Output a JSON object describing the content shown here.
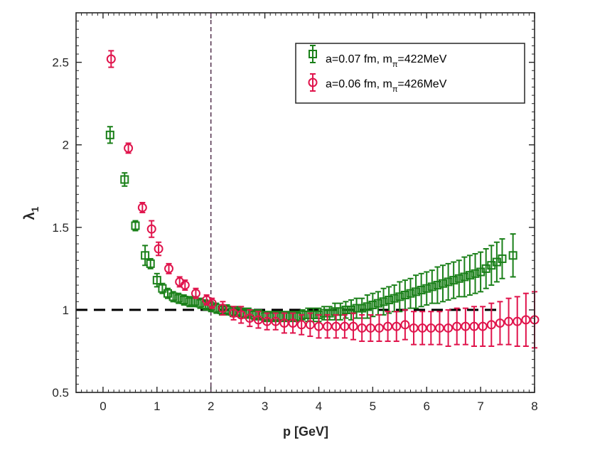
{
  "chart_data": {
    "type": "scatter",
    "xlabel": "p [GeV]",
    "ylabel": "λ",
    "ylabel_sub": "1",
    "xlim": [
      -0.5,
      8
    ],
    "ylim": [
      0.5,
      2.8
    ],
    "x_ticks": [
      0,
      1,
      2,
      3,
      4,
      5,
      6,
      7,
      8
    ],
    "x_tick_labels": [
      "0",
      "1",
      "2",
      "3",
      "4",
      "5",
      "6",
      "7",
      "8"
    ],
    "y_ticks": [
      0.5,
      1,
      1.5,
      2,
      2.5
    ],
    "y_tick_labels": [
      "0.5",
      "1",
      "1.5",
      "2",
      "2.5"
    ],
    "reference_lines": {
      "horizontal": {
        "y": 1,
        "style": "dashed",
        "color": "#000000",
        "x_end": 7.3
      },
      "vertical": {
        "x": 2,
        "style": "dashed",
        "color": "#5a3a55"
      }
    },
    "legend": {
      "position": "top-right",
      "entries": [
        {
          "prefix": "a=0.07 fm,  m",
          "sub": "π",
          "suffix": "=422MeV",
          "marker": "square",
          "color": "#1a8019"
        },
        {
          "prefix": "a=0.06 fm, m",
          "sub": "π",
          "suffix": "=426MeV",
          "marker": "circle",
          "color": "#e0144c"
        }
      ]
    },
    "series": [
      {
        "name": "a=0.07 fm, mπ=422MeV",
        "marker": "square",
        "color": "#1a8019",
        "x": [
          0.13,
          0.4,
          0.6,
          0.78,
          0.88,
          1.0,
          1.1,
          1.2,
          1.3,
          1.4,
          1.5,
          1.6,
          1.7,
          1.8,
          1.9,
          2.0,
          2.1,
          2.2,
          2.3,
          2.4,
          2.5,
          2.6,
          2.7,
          2.8,
          2.9,
          3.0,
          3.1,
          3.2,
          3.3,
          3.4,
          3.5,
          3.6,
          3.7,
          3.8,
          3.9,
          4.0,
          4.1,
          4.2,
          4.3,
          4.4,
          4.5,
          4.6,
          4.7,
          4.8,
          4.9,
          5.0,
          5.1,
          5.2,
          5.3,
          5.4,
          5.5,
          5.6,
          5.7,
          5.8,
          5.9,
          6.0,
          6.1,
          6.2,
          6.3,
          6.4,
          6.5,
          6.6,
          6.7,
          6.8,
          6.9,
          7.0,
          7.1,
          7.2,
          7.3,
          7.4,
          7.6
        ],
        "y": [
          2.06,
          1.79,
          1.51,
          1.33,
          1.28,
          1.18,
          1.13,
          1.1,
          1.08,
          1.07,
          1.06,
          1.05,
          1.05,
          1.04,
          1.03,
          1.02,
          1.01,
          1.0,
          1.0,
          0.99,
          0.99,
          0.98,
          0.98,
          0.97,
          0.97,
          0.96,
          0.96,
          0.96,
          0.96,
          0.96,
          0.96,
          0.96,
          0.97,
          0.97,
          0.97,
          0.97,
          0.98,
          0.98,
          0.99,
          0.99,
          1.0,
          1.0,
          1.01,
          1.01,
          1.02,
          1.03,
          1.04,
          1.05,
          1.06,
          1.07,
          1.08,
          1.09,
          1.1,
          1.11,
          1.12,
          1.13,
          1.14,
          1.15,
          1.16,
          1.17,
          1.18,
          1.19,
          1.2,
          1.21,
          1.22,
          1.23,
          1.25,
          1.27,
          1.29,
          1.31,
          1.33
        ],
        "err": [
          0.05,
          0.04,
          0.03,
          0.06,
          0.03,
          0.04,
          0.03,
          0.03,
          0.03,
          0.03,
          0.03,
          0.03,
          0.03,
          0.03,
          0.03,
          0.03,
          0.03,
          0.03,
          0.03,
          0.03,
          0.03,
          0.03,
          0.03,
          0.03,
          0.03,
          0.03,
          0.03,
          0.03,
          0.03,
          0.03,
          0.03,
          0.03,
          0.03,
          0.04,
          0.04,
          0.04,
          0.04,
          0.04,
          0.05,
          0.05,
          0.05,
          0.06,
          0.06,
          0.06,
          0.07,
          0.07,
          0.07,
          0.08,
          0.08,
          0.08,
          0.09,
          0.09,
          0.09,
          0.1,
          0.1,
          0.1,
          0.1,
          0.11,
          0.11,
          0.11,
          0.11,
          0.11,
          0.12,
          0.12,
          0.12,
          0.12,
          0.12,
          0.12,
          0.12,
          0.12,
          0.13
        ]
      },
      {
        "name": "a=0.06 fm, mπ=426MeV",
        "marker": "circle",
        "color": "#e0144c",
        "x": [
          0.15,
          0.47,
          0.73,
          0.9,
          1.03,
          1.22,
          1.42,
          1.52,
          1.72,
          1.92,
          2.02,
          2.22,
          2.42,
          2.56,
          2.72,
          2.88,
          3.04,
          3.2,
          3.36,
          3.52,
          3.68,
          3.84,
          4.0,
          4.16,
          4.32,
          4.48,
          4.64,
          4.8,
          4.96,
          5.12,
          5.28,
          5.44,
          5.6,
          5.76,
          5.92,
          6.08,
          6.24,
          6.4,
          6.56,
          6.72,
          6.88,
          7.04,
          7.2,
          7.36,
          7.52,
          7.68,
          7.84,
          8.0
        ],
        "y": [
          2.52,
          1.98,
          1.62,
          1.49,
          1.37,
          1.25,
          1.17,
          1.15,
          1.1,
          1.06,
          1.04,
          1.01,
          0.98,
          0.97,
          0.95,
          0.94,
          0.93,
          0.93,
          0.92,
          0.92,
          0.91,
          0.91,
          0.9,
          0.9,
          0.9,
          0.9,
          0.9,
          0.89,
          0.89,
          0.89,
          0.9,
          0.9,
          0.91,
          0.89,
          0.89,
          0.89,
          0.89,
          0.89,
          0.9,
          0.9,
          0.9,
          0.9,
          0.91,
          0.92,
          0.93,
          0.93,
          0.94,
          0.94
        ],
        "err": [
          0.05,
          0.03,
          0.03,
          0.05,
          0.04,
          0.03,
          0.03,
          0.03,
          0.03,
          0.03,
          0.03,
          0.04,
          0.04,
          0.05,
          0.05,
          0.05,
          0.05,
          0.05,
          0.06,
          0.06,
          0.06,
          0.07,
          0.07,
          0.07,
          0.07,
          0.07,
          0.08,
          0.08,
          0.08,
          0.08,
          0.09,
          0.09,
          0.09,
          0.1,
          0.1,
          0.1,
          0.1,
          0.11,
          0.11,
          0.11,
          0.12,
          0.12,
          0.13,
          0.13,
          0.14,
          0.15,
          0.16,
          0.17
        ]
      }
    ]
  }
}
